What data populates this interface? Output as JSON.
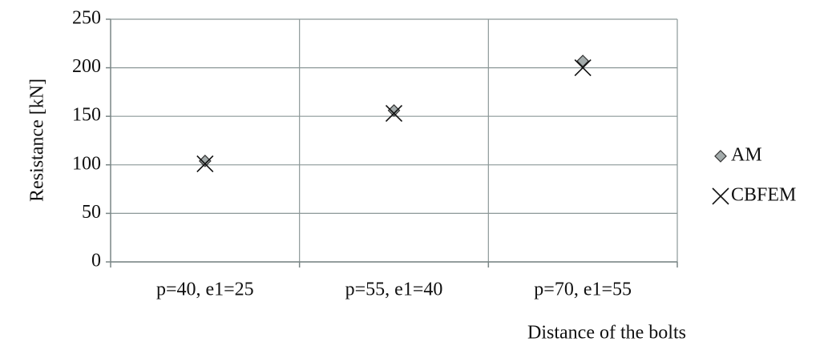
{
  "chart_data": {
    "type": "scatter",
    "x_label": "Distance of the bolts",
    "y_label": "Resistance [kN]",
    "categories": [
      "p=40, e1=25",
      "p=55, e1=40",
      "p=70, e1=55"
    ],
    "series": [
      {
        "name": "AM",
        "color": "#a3abab",
        "marker": "diamond",
        "values": [
          104,
          156,
          207
        ]
      },
      {
        "name": "CBFEM",
        "color": "#111111",
        "marker": "x",
        "values": [
          101,
          153,
          200
        ]
      }
    ],
    "ylim": [
      0,
      250
    ],
    "yticks": [
      0,
      50,
      100,
      150,
      200,
      250
    ],
    "grid": true,
    "legend": "right"
  }
}
